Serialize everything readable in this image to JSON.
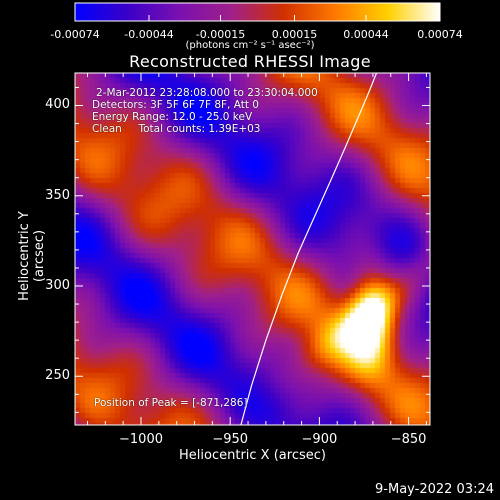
{
  "colorbar": {
    "ticks": [
      "-0.00074",
      "-0.00044",
      "-0.00015",
      "0.00015",
      "0.00044",
      "0.00074"
    ],
    "units": "(photons cm⁻² s⁻¹ asec⁻²)",
    "vmin": -0.00074,
    "vmax": 0.00074,
    "stops": [
      "#0000ff",
      "#3a00c8",
      "#7a10b0",
      "#a0208a",
      "#d03000",
      "#ff7a00",
      "#ffd000",
      "#ffffff"
    ]
  },
  "info": {
    "line1": "2-Mar-2012 23:28:08.000 to 23:30:04.000",
    "line2": "Detectors: 3F 5F 6F 7F 8F, Att 0",
    "line3": "Energy Range: 12.0 - 25.0 keV",
    "line4": "Clean     Total counts: 1.39E+03",
    "peak": "Position of Peak = [-871,286]"
  },
  "timestamp": "9-May-2022 03:24",
  "chart_data": {
    "type": "heatmap",
    "title": "Reconstructed RHESSI Image",
    "xlabel": "Heliocentric X (arcsec)",
    "ylabel": "Heliocentric Y (arcsec)",
    "xlim": [
      -1037,
      -838
    ],
    "ylim": [
      223,
      418
    ],
    "xticks": [
      -1000,
      -950,
      -900,
      -850
    ],
    "yticks": [
      250,
      300,
      350,
      400
    ],
    "xtick_labels": [
      "−1000",
      "−950",
      "−900",
      "−850"
    ],
    "ytick_labels": [
      "250",
      "300",
      "350",
      "400"
    ],
    "peak_position": [
      -871,
      286
    ],
    "limb_curve": {
      "x": [
        -944,
        -938,
        -930,
        -921,
        -912,
        -902,
        -893,
        -885,
        -878,
        -872,
        -868
      ],
      "y": [
        223,
        245,
        270,
        295,
        318,
        340,
        360,
        378,
        394,
        408,
        418
      ]
    }
  }
}
